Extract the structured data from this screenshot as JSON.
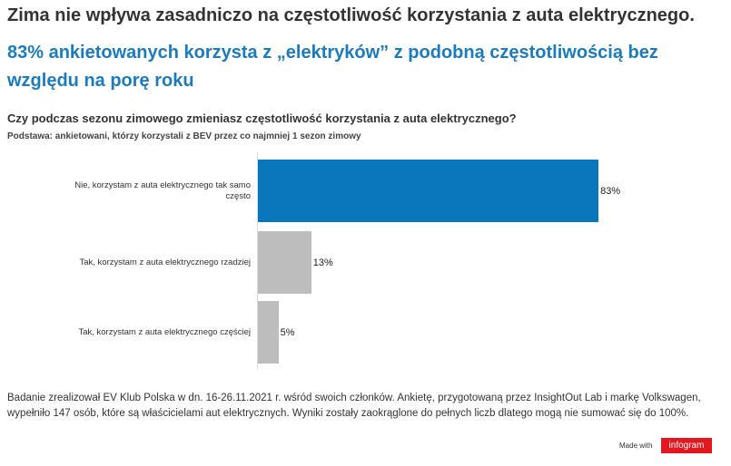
{
  "chart_data": {
    "type": "bar",
    "title": "Zima nie wpływa zasadniczo na częstotliwość korzystania z auta elektrycznego.",
    "subtitle": "83% ankietowanych korzysta z „elektryków” z podobną częstotliwością bez względu na porę roku",
    "question": "Czy podczas sezonu zimowego zmieniasz częstotliwość korzystania z auta elektrycznego?",
    "base": "Podstawa: ankietowani, którzy korzystali z BEV przez co najmniej 1 sezon zimowy",
    "categories": [
      "Nie, korzystam z auta elektrycznego tak samo często",
      "Tak, korzystam z auta elektrycznego rzadziej",
      "Tak, korzystam z auta elektrycznego częściej"
    ],
    "values": [
      83,
      13,
      5
    ],
    "value_labels": [
      "83%",
      "13%",
      "5%"
    ],
    "colors": [
      "#0a77bd",
      "#bdbdbd",
      "#bdbdbd"
    ],
    "note": "Badanie zrealizował EV Klub Polska w dn. 16-26.11.2021 r. wśród swoich członków. Ankietę, przygotowaną przez InsightOut Lab i markę Volkswagen, wypełniło 147 osób, które są właścicielami aut elektrycznych. Wyniki zostały zaokrąglone do pełnych liczb dlatego mogą nie sumować się do 100%.",
    "made_with": "Made with",
    "brand": "infogram"
  }
}
